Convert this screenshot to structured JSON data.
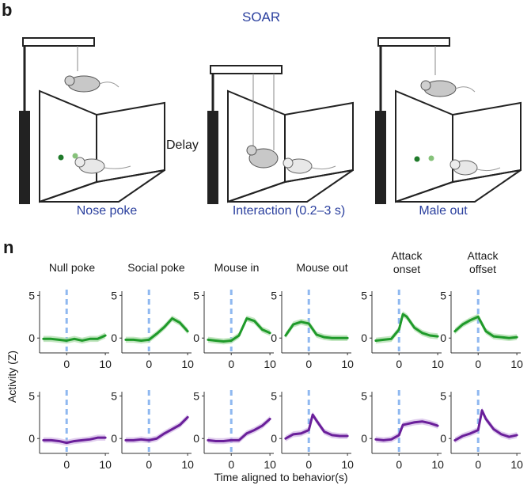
{
  "panel_b": {
    "letter": "b",
    "title": "SOAR",
    "delay_label": "Delay",
    "captions": [
      "Nose poke",
      "Interaction (0.2–3 s)",
      "Male out"
    ]
  },
  "panel_n": {
    "letter": "n",
    "y_axis_label": "Activity (Z)",
    "x_axis_label": "Time aligned to behavior(s)",
    "titles": [
      [
        "Null poke"
      ],
      [
        "Social poke"
      ],
      [
        "Mouse in"
      ],
      [
        "Mouse out"
      ],
      [
        "Attack",
        "onset"
      ],
      [
        "Attack",
        "offset"
      ]
    ]
  },
  "colors": {
    "green": "#1f9a2a",
    "green_shade": "#a9dca6",
    "purple": "#6a1f9a",
    "purple_shade": "#d2b6e6",
    "marker": "#8fb8f0",
    "text_blue": "#2a3f9e"
  },
  "chart_data": {
    "type": "line",
    "x_ticks": [
      0,
      10
    ],
    "y_ticks": [
      0,
      5
    ],
    "xlim": [
      -7,
      11
    ],
    "ylim": [
      -1,
      5.5
    ],
    "rows": [
      {
        "color": "green",
        "panels": [
          {
            "x": [
              -6,
              -4,
              -2,
              0,
              2,
              4,
              6,
              8,
              10
            ],
            "y": [
              -0.1,
              -0.1,
              -0.2,
              -0.3,
              -0.1,
              -0.3,
              -0.1,
              -0.1,
              0.3
            ]
          },
          {
            "x": [
              -6,
              -4,
              -2,
              0,
              2,
              4,
              6,
              8,
              10
            ],
            "y": [
              -0.2,
              -0.2,
              -0.3,
              -0.2,
              0.5,
              1.3,
              2.3,
              1.8,
              0.8
            ]
          },
          {
            "x": [
              -6,
              -4,
              -2,
              0,
              2,
              4,
              6,
              8,
              10
            ],
            "y": [
              -0.2,
              -0.3,
              -0.4,
              -0.3,
              0.3,
              2.3,
              2.0,
              1.0,
              0.6
            ]
          },
          {
            "x": [
              -6,
              -4,
              -2,
              0,
              2,
              4,
              6,
              8,
              10
            ],
            "y": [
              0.3,
              1.6,
              1.9,
              1.7,
              0.4,
              0.1,
              0.0,
              0.0,
              0.0
            ]
          },
          {
            "x": [
              -6,
              -4,
              -2,
              0,
              1,
              2,
              4,
              6,
              8,
              10
            ],
            "y": [
              -0.3,
              -0.2,
              -0.1,
              1.0,
              2.8,
              2.5,
              1.2,
              0.6,
              0.3,
              0.2
            ]
          },
          {
            "x": [
              -6,
              -4,
              -2,
              0,
              2,
              4,
              6,
              8,
              10
            ],
            "y": [
              0.8,
              1.6,
              2.1,
              2.5,
              0.8,
              0.2,
              0.1,
              0.0,
              0.1
            ]
          }
        ]
      },
      {
        "color": "purple",
        "panels": [
          {
            "x": [
              -6,
              -4,
              -2,
              0,
              2,
              4,
              6,
              8,
              10
            ],
            "y": [
              -0.2,
              -0.2,
              -0.3,
              -0.5,
              -0.3,
              -0.2,
              -0.1,
              0.1,
              0.1
            ]
          },
          {
            "x": [
              -6,
              -4,
              -2,
              0,
              2,
              4,
              6,
              8,
              10
            ],
            "y": [
              -0.2,
              -0.2,
              -0.1,
              -0.2,
              0.0,
              0.6,
              1.1,
              1.6,
              2.5
            ]
          },
          {
            "x": [
              -6,
              -4,
              -2,
              0,
              2,
              4,
              6,
              8,
              10
            ],
            "y": [
              -0.2,
              -0.3,
              -0.3,
              -0.2,
              -0.2,
              0.6,
              1.0,
              1.5,
              2.3
            ]
          },
          {
            "x": [
              -6,
              -4,
              -2,
              0,
              1,
              2,
              4,
              6,
              8,
              10
            ],
            "y": [
              0.0,
              0.5,
              0.6,
              1.0,
              2.8,
              2.1,
              0.8,
              0.4,
              0.3,
              0.3
            ]
          },
          {
            "x": [
              -6,
              -4,
              -2,
              0,
              1,
              2,
              4,
              6,
              8,
              10
            ],
            "y": [
              -0.1,
              -0.2,
              -0.1,
              0.4,
              1.6,
              1.7,
              1.9,
              2.0,
              1.8,
              1.5
            ]
          },
          {
            "x": [
              -6,
              -4,
              -2,
              0,
              1,
              2,
              4,
              6,
              8,
              10
            ],
            "y": [
              -0.2,
              0.3,
              0.6,
              1.0,
              3.3,
              2.3,
              1.1,
              0.5,
              0.2,
              0.4
            ]
          }
        ]
      }
    ]
  }
}
